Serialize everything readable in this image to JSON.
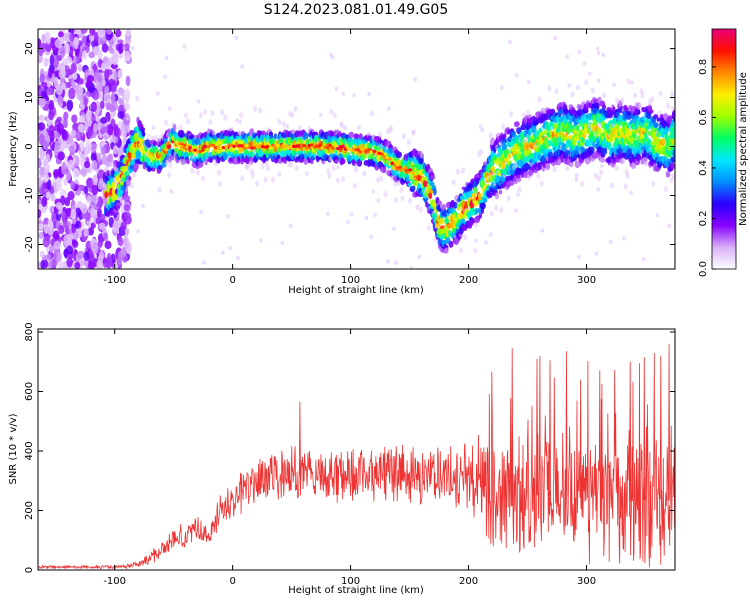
{
  "page": {
    "title": "S124.2023.081.01.49.G05"
  },
  "colorbar": {
    "label": "Normalized spectral amplitude",
    "range": [
      0.0,
      0.95
    ],
    "ticks": [
      0.0,
      0.2,
      0.4,
      0.6,
      0.8
    ],
    "tick_labels": [
      "0.0",
      "0.2",
      "0.4",
      "0.6",
      "0.8"
    ],
    "colormap": [
      "#ffffff",
      "#d8b0f8",
      "#8800ff",
      "#2a00ff",
      "#0090ff",
      "#00e8ff",
      "#00ff60",
      "#a0ff00",
      "#ffee00",
      "#ff8800",
      "#ff1000",
      "#e80078"
    ]
  },
  "chart_data": [
    {
      "type": "heatmap",
      "xlabel": "Height of straight line (km)",
      "ylabel": "Frequency (Hz)",
      "xlim": [
        -165,
        375
      ],
      "ylim": [
        -25,
        24
      ],
      "xticks": [
        -100,
        0,
        100,
        200,
        300
      ],
      "xtick_labels": [
        "-100",
        "0",
        "100",
        "200",
        "300"
      ],
      "yticks": [
        -20,
        -10,
        0,
        10,
        20
      ],
      "ytick_labels": [
        "-20",
        "-10",
        "0",
        "10",
        "20"
      ],
      "ridge": {
        "x": [
          -107,
          -100,
          -95,
          -90,
          -85,
          -80,
          -75,
          -70,
          -60,
          -55,
          -50,
          -45,
          -40,
          -30,
          -20,
          -10,
          0,
          20,
          40,
          60,
          80,
          100,
          120,
          130,
          140,
          150,
          160,
          165,
          170,
          175,
          180,
          185,
          190,
          195,
          200,
          205,
          210,
          220,
          230,
          240,
          250,
          260,
          270,
          280,
          290,
          300,
          310,
          320,
          330,
          340,
          350,
          360,
          370,
          375
        ],
        "y": [
          -10,
          -9,
          -7,
          -4,
          -1,
          1,
          -1,
          -2,
          -2,
          0,
          1,
          0,
          0,
          -1,
          0,
          0,
          0,
          0,
          0,
          0,
          0,
          -0.5,
          -1,
          -2,
          -4,
          -5,
          -6,
          -8,
          -11,
          -16,
          -17,
          -16,
          -15,
          -13,
          -12,
          -11,
          -10,
          -5,
          -3,
          -1,
          0,
          1,
          2,
          3,
          2,
          3,
          4,
          2,
          3,
          2,
          3,
          1,
          0,
          2
        ]
      },
      "noise_region_x": [
        -165,
        -100
      ]
    },
    {
      "type": "line",
      "xlabel": "Height of straight line (km)",
      "ylabel": "SNR (10 * v/v)",
      "xlim": [
        -165,
        375
      ],
      "ylim": [
        0,
        810
      ],
      "xticks": [
        -100,
        0,
        100,
        200,
        300
      ],
      "xtick_labels": [
        "-100",
        "0",
        "100",
        "200",
        "300"
      ],
      "yticks": [
        0,
        200,
        400,
        600,
        800
      ],
      "ytick_labels": [
        "0",
        "200",
        "400",
        "600",
        "800"
      ],
      "series": [
        {
          "color": "#ee3333",
          "envelope_x": [
            -165,
            -140,
            -120,
            -100,
            -90,
            -80,
            -70,
            -60,
            -50,
            -40,
            -30,
            -20,
            -15,
            -10,
            0,
            10,
            20,
            40,
            60,
            80,
            100,
            120,
            140,
            160,
            180,
            200,
            210,
            220,
            240,
            260,
            280,
            300,
            320,
            340,
            360,
            375
          ],
          "mean": [
            10,
            10,
            10,
            10,
            12,
            20,
            40,
            70,
            100,
            120,
            140,
            110,
            160,
            200,
            240,
            270,
            300,
            320,
            320,
            320,
            320,
            330,
            330,
            320,
            320,
            320,
            300,
            250,
            260,
            250,
            250,
            240,
            240,
            230,
            240,
            230
          ],
          "spread": [
            5,
            5,
            5,
            5,
            6,
            10,
            20,
            30,
            40,
            40,
            40,
            40,
            40,
            60,
            70,
            80,
            80,
            90,
            90,
            90,
            90,
            90,
            90,
            90,
            90,
            100,
            140,
            180,
            200,
            200,
            210,
            210,
            210,
            210,
            220,
            200
          ],
          "peaks_x": [
            57,
            237,
            258,
            269,
            283,
            295,
            313,
            337,
            349,
            363,
            370
          ],
          "peaks_y": [
            565,
            745,
            710,
            705,
            735,
            640,
            625,
            700,
            715,
            720,
            760
          ]
        }
      ]
    }
  ]
}
